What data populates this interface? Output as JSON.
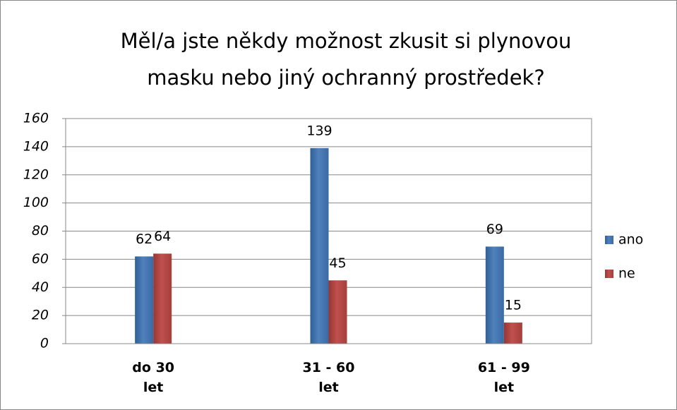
{
  "chart_data": {
    "type": "bar",
    "title": "Měl/a jste někdy možnost zkusit si plynovou masku nebo jiný ochranný prostředek?",
    "categories": [
      "do 30 let",
      "31 - 60 let",
      "61 - 99 let"
    ],
    "series": [
      {
        "name": "ano",
        "color": "#4f81bd",
        "values": [
          62,
          139,
          69
        ]
      },
      {
        "name": "ne",
        "color": "#c0504d",
        "values": [
          64,
          45,
          15
        ]
      }
    ],
    "ylim": [
      0,
      160
    ],
    "yticks": [
      0,
      20,
      40,
      60,
      80,
      100,
      120,
      140,
      160
    ],
    "grid": true,
    "legend": "right"
  }
}
